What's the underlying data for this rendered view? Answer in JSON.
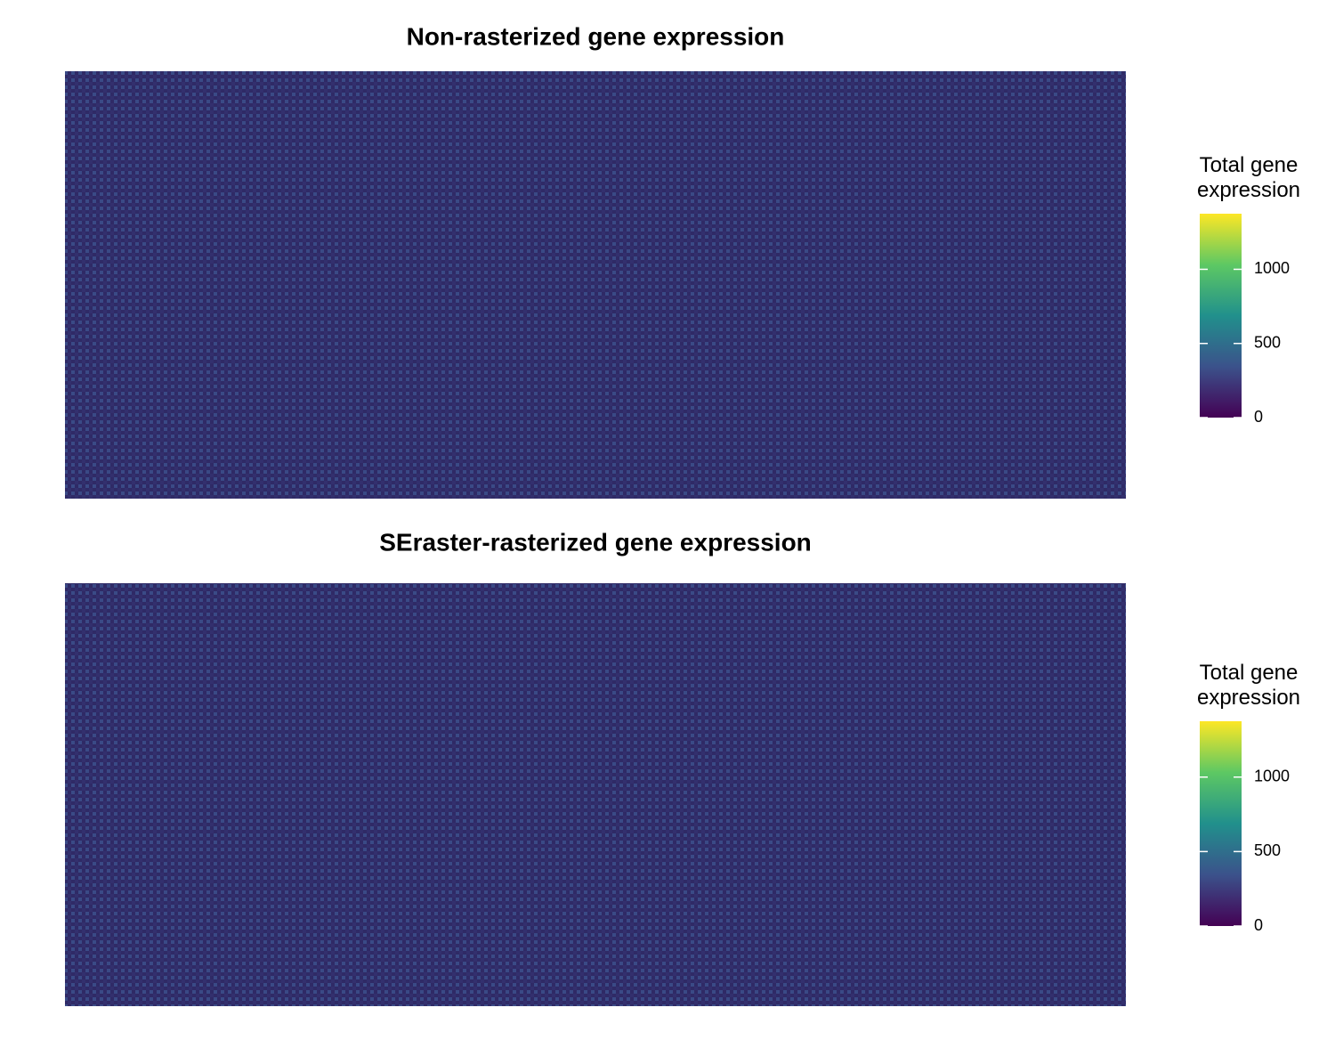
{
  "chart_data": [
    {
      "type": "heatmap",
      "title": "Non-rasterized gene expression",
      "legend_title": "Total gene expression",
      "colors": [
        "#440154",
        "#3b528b",
        "#21908c",
        "#5dc863",
        "#fde725"
      ],
      "clim": [
        0,
        1375
      ],
      "cticks": [
        0,
        500,
        1000
      ]
    },
    {
      "type": "heatmap",
      "title": "SEraster-rasterized gene expression",
      "legend_title": "Total gene expression",
      "colors": [
        "#440154",
        "#3b528b",
        "#21908c",
        "#5dc863",
        "#fde725"
      ],
      "clim": [
        0,
        1375
      ],
      "cticks": [
        0,
        500,
        1000
      ]
    }
  ]
}
